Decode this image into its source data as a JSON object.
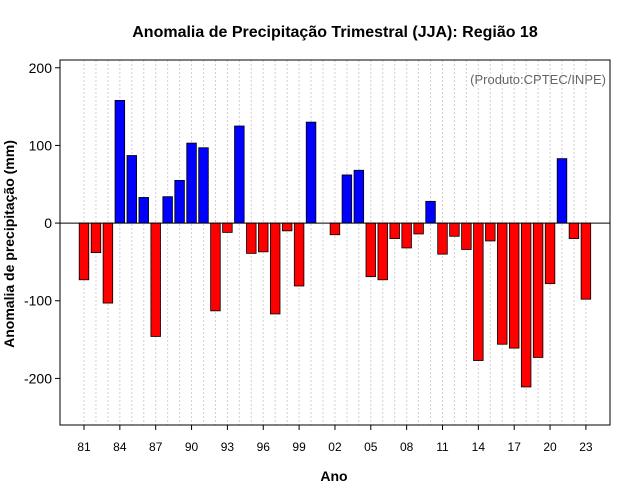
{
  "chart_data": {
    "type": "bar",
    "title": "Anomalia de Precipitação Trimestral (JJA): Região 18",
    "xlabel": "Ano",
    "ylabel": "Anomalia de precipitação (mm)",
    "credit": "(Produto:CPTEC/INPE)",
    "ylim": [
      -260,
      210
    ],
    "yticks": [
      -200,
      -100,
      0,
      100,
      200
    ],
    "xtick_labels": [
      "81",
      "84",
      "87",
      "90",
      "93",
      "96",
      "99",
      "02",
      "05",
      "08",
      "11",
      "14",
      "17",
      "20",
      "23"
    ],
    "xtick_years": [
      1981,
      1984,
      1987,
      1990,
      1993,
      1996,
      1999,
      2002,
      2005,
      2008,
      2011,
      2014,
      2017,
      2020,
      2023
    ],
    "grid": true,
    "colors": {
      "positive": "#0000ff",
      "negative": "#ff0000",
      "zero_line": "#000000",
      "grid": "#d0d0d0"
    },
    "categories": [
      1981,
      1982,
      1983,
      1984,
      1985,
      1986,
      1987,
      1988,
      1989,
      1990,
      1991,
      1992,
      1993,
      1994,
      1995,
      1996,
      1997,
      1998,
      1999,
      2000,
      2001,
      2002,
      2003,
      2004,
      2005,
      2006,
      2007,
      2008,
      2009,
      2010,
      2011,
      2012,
      2013,
      2014,
      2015,
      2016,
      2017,
      2018,
      2019,
      2020,
      2021,
      2022,
      2023
    ],
    "values": [
      -73,
      -38,
      -103,
      158,
      87,
      33,
      -146,
      34,
      55,
      103,
      97,
      -113,
      -12,
      125,
      -39,
      -37,
      -117,
      -10,
      -81,
      130,
      0,
      -15,
      62,
      68,
      -69,
      -73,
      -20,
      -32,
      -14,
      28,
      -40,
      -17,
      -34,
      -177,
      -23,
      -156,
      -161,
      -211,
      -173,
      -78,
      83,
      -20,
      -98
    ]
  }
}
